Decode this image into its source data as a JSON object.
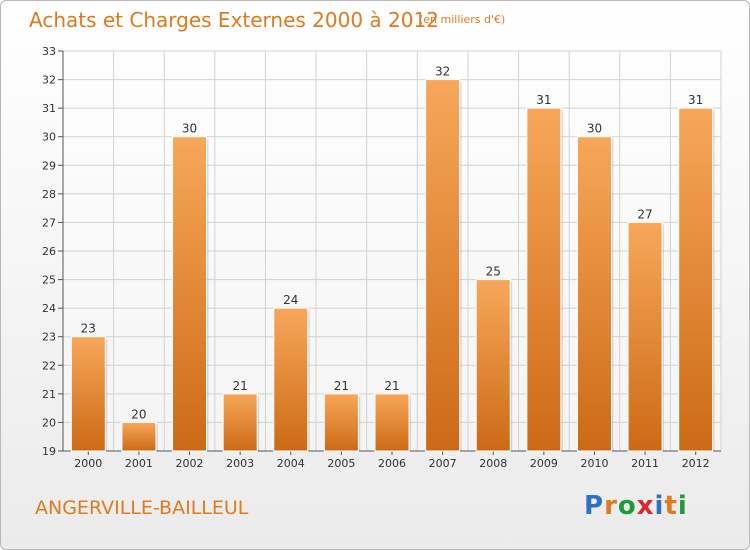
{
  "header": {
    "title": "Achats et Charges Externes 2000 à 2012",
    "subtitle": "(en milliers d'€)"
  },
  "footer": {
    "city": "ANGERVILLE-BAILLEUL",
    "logo_letters": [
      {
        "char": "P",
        "color": "#2f6fc4"
      },
      {
        "char": "r",
        "color": "#e07a1f"
      },
      {
        "char": "o",
        "color": "#1e9a3c"
      },
      {
        "char": "x",
        "color": "#d92b2b"
      },
      {
        "char": "i",
        "color": "#2f6fc4"
      },
      {
        "char": "t",
        "color": "#e07a1f"
      },
      {
        "char": "i",
        "color": "#1e9a3c"
      }
    ]
  },
  "chart_data": {
    "type": "bar",
    "categories": [
      "2000",
      "2001",
      "2002",
      "2003",
      "2004",
      "2005",
      "2006",
      "2007",
      "2008",
      "2009",
      "2010",
      "2011",
      "2012"
    ],
    "values": [
      23,
      20,
      30,
      21,
      24,
      21,
      21,
      32,
      25,
      31,
      30,
      27,
      31
    ],
    "title": "Achats et Charges Externes 2000 à 2012",
    "xlabel": "",
    "ylabel": "",
    "ylim": [
      19,
      33
    ],
    "yticks": [
      19,
      20,
      21,
      22,
      23,
      24,
      25,
      26,
      27,
      28,
      29,
      30,
      31,
      32,
      33
    ],
    "grid": true,
    "bar_color_top": "#f7a75a",
    "bar_color_bottom": "#cc6a14"
  }
}
